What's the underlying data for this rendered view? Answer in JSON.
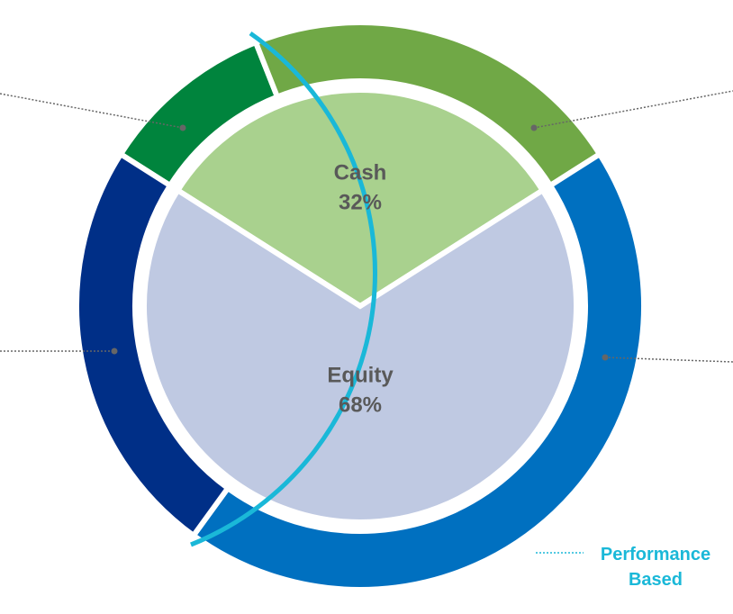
{
  "chart_data": [
    {
      "type": "pie",
      "categories": [
        "Cash",
        "Equity"
      ],
      "values": [
        32,
        68
      ],
      "value_labels": [
        "32%",
        "68%"
      ],
      "colors": [
        "#a9d18e",
        "#bfc9e2"
      ]
    },
    {
      "type": "donut",
      "categories": [
        null,
        null,
        null,
        null
      ],
      "values": [
        10,
        22,
        44,
        24
      ],
      "colors": [
        "#00843d",
        "#70a846",
        "#0070c0",
        "#002f87"
      ],
      "annotation": "Performance Based"
    }
  ]
}
